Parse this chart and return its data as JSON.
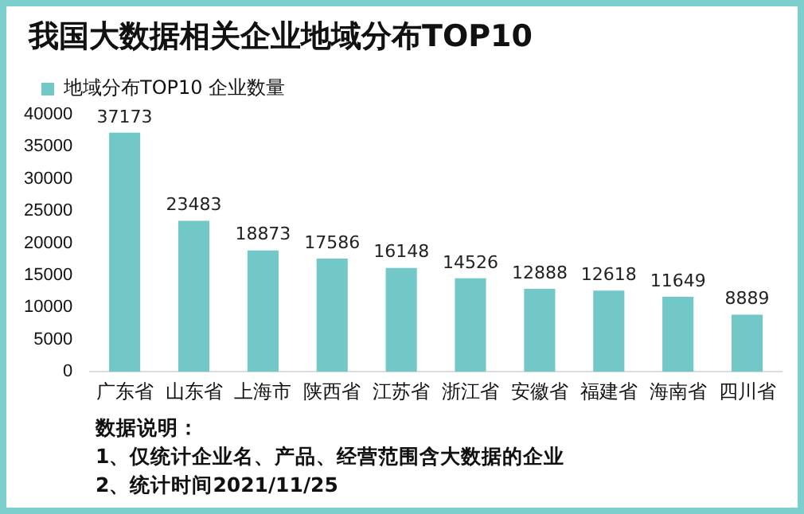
{
  "chart_data": {
    "type": "bar",
    "title": "我国大数据相关企业地域分布TOP10",
    "categories": [
      "广东省",
      "山东省",
      "上海市",
      "陕西省",
      "江苏省",
      "浙江省",
      "安徽省",
      "福建省",
      "海南省",
      "四川省"
    ],
    "series": [
      {
        "name": "地域分布TOP10 企业数量",
        "color": "#72c8c6",
        "values": [
          37173,
          23483,
          18873,
          17586,
          16148,
          14526,
          12888,
          12618,
          11649,
          8889
        ]
      }
    ],
    "ylim": [
      0,
      40000
    ],
    "yticks": [
      0,
      5000,
      10000,
      15000,
      20000,
      25000,
      30000,
      35000,
      40000
    ],
    "grid": false,
    "legend": "top left",
    "data_labels": true,
    "annotations": [
      "数据说明：",
      "1、仅统计企业名、产品、经营范围含大数据的企业",
      "2、统计时间2021/11/25"
    ]
  }
}
